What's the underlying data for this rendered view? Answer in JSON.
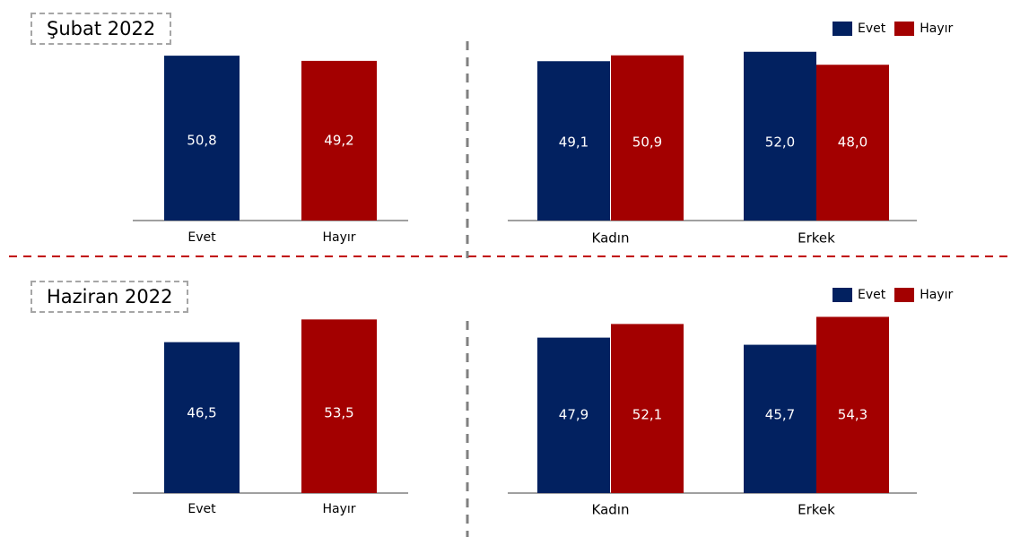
{
  "colors": {
    "evet": "#022160",
    "hayir": "#a30000",
    "axis": "#404040",
    "divider_vertical": "#808080",
    "divider_horizontal": "#c00000"
  },
  "legend": {
    "evet": "Evet",
    "hayir": "Hayır"
  },
  "panels": [
    {
      "label": "Şubat 2022"
    },
    {
      "label": "Haziran 2022"
    }
  ],
  "chart_data": [
    {
      "type": "bar",
      "title": "Şubat 2022",
      "categories": [
        "Evet",
        "Hayır"
      ],
      "values": [
        50.8,
        49.2
      ],
      "value_labels": [
        "50,8",
        "49,2"
      ]
    },
    {
      "type": "bar",
      "title": "Şubat 2022",
      "categories": [
        "Kadın",
        "Erkek"
      ],
      "series": [
        {
          "name": "Evet",
          "values": [
            49.1,
            52.0
          ],
          "value_labels": [
            "49,1",
            "52,0"
          ]
        },
        {
          "name": "Hayır",
          "values": [
            50.9,
            48.0
          ],
          "value_labels": [
            "50,9",
            "48,0"
          ]
        }
      ]
    },
    {
      "type": "bar",
      "title": "Haziran 2022",
      "categories": [
        "Evet",
        "Hayır"
      ],
      "values": [
        46.5,
        53.5
      ],
      "value_labels": [
        "46,5",
        "53,5"
      ]
    },
    {
      "type": "bar",
      "title": "Haziran 2022",
      "categories": [
        "Kadın",
        "Erkek"
      ],
      "series": [
        {
          "name": "Evet",
          "values": [
            47.9,
            45.7
          ],
          "value_labels": [
            "47,9",
            "45,7"
          ]
        },
        {
          "name": "Hayır",
          "values": [
            52.1,
            54.3
          ],
          "value_labels": [
            "52,1",
            "54,3"
          ]
        }
      ]
    }
  ]
}
